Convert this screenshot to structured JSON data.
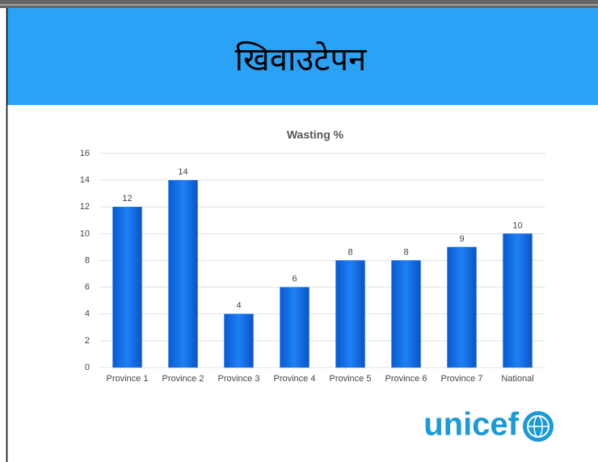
{
  "header": {
    "title": "खिवाउटेपन"
  },
  "chart_data": {
    "type": "bar",
    "title": "Wasting %",
    "categories": [
      "Province 1",
      "Province 2",
      "Province 3",
      "Province 4",
      "Province 5",
      "Province 6",
      "Province 7",
      "National"
    ],
    "values": [
      12,
      14,
      4,
      6,
      8,
      8,
      9,
      10
    ],
    "color": "#1e80f5",
    "ylim": [
      0,
      16
    ],
    "yticks": [
      0,
      2,
      4,
      6,
      8,
      10,
      12,
      14,
      16
    ],
    "grid": true
  },
  "logo": {
    "text": "unicef"
  }
}
